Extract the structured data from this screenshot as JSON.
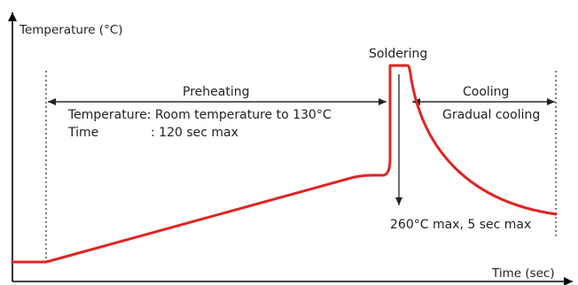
{
  "axes": {
    "y_label": "Temperature (°C)",
    "x_label": "Time (sec)"
  },
  "phases": {
    "preheating": {
      "label": "Preheating",
      "temperature_line": "Temperature: Room temperature to 130°C",
      "time_label": "Time",
      "time_value": ": 120 sec max"
    },
    "soldering": {
      "label": "Soldering",
      "limit": "260°C max, 5 sec max"
    },
    "cooling": {
      "label": "Cooling",
      "description": "Gradual cooling"
    }
  },
  "colors": {
    "profile_curve": "#e02424",
    "axes": "#000000",
    "annotation": "#222222"
  }
}
